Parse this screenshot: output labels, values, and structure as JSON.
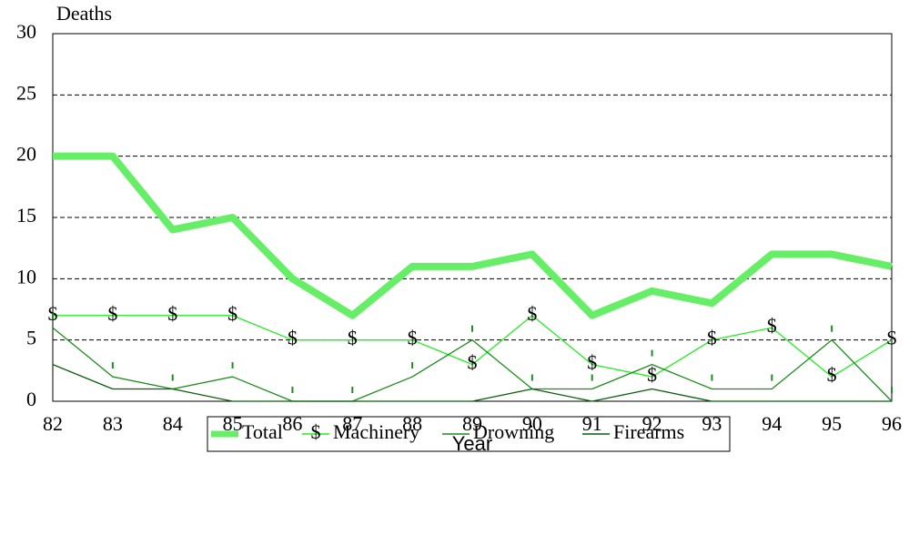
{
  "chart_data": {
    "type": "line",
    "y_label": "Deaths",
    "x_label": "Year",
    "categories": [
      "82",
      "83",
      "84",
      "85",
      "86",
      "87",
      "88",
      "89",
      "90",
      "91",
      "92",
      "93",
      "94",
      "95",
      "96"
    ],
    "ylim": [
      0,
      30
    ],
    "yticks": [
      0,
      5,
      10,
      15,
      20,
      25,
      30
    ],
    "grid": true,
    "legend": "bottom",
    "series": [
      {
        "name": "Total",
        "color": "#66ee66",
        "values": [
          20,
          20,
          14,
          15,
          10,
          7,
          11,
          11,
          12,
          7,
          9,
          8,
          12,
          12,
          11
        ]
      },
      {
        "name": "Machinery",
        "color": "#22ee22",
        "marker": "$",
        "values": [
          7,
          7,
          7,
          7,
          5,
          5,
          5,
          3,
          7,
          3,
          2,
          5,
          6,
          2,
          5
        ]
      },
      {
        "name": "Drowning",
        "color": "#1e8c1e",
        "values": [
          6,
          2,
          1,
          2,
          0,
          0,
          2,
          5,
          1,
          1,
          3,
          1,
          1,
          5,
          0
        ]
      },
      {
        "name": "Firearms",
        "color": "#0b5e0b",
        "values": [
          3,
          1,
          1,
          0,
          0,
          0,
          0,
          0,
          1,
          0,
          1,
          0,
          0,
          0,
          0
        ]
      }
    ]
  }
}
